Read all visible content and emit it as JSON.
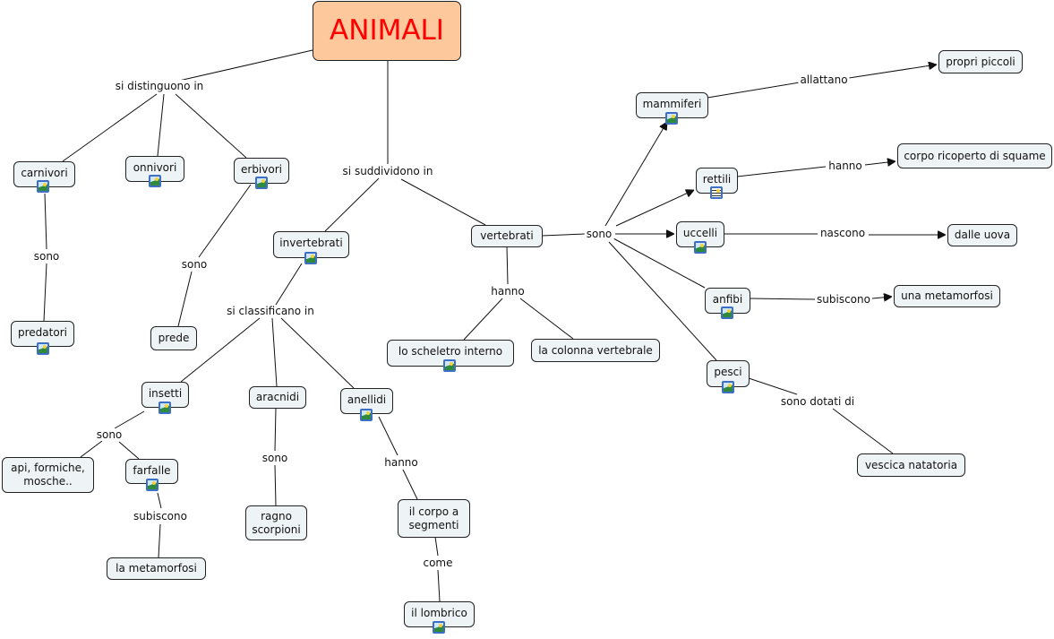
{
  "root": "ANIMALI",
  "concepts": {
    "carnivori": "carnivori",
    "onnivori": "onnivori",
    "erbivori": "erbivori",
    "predatori": "predatori",
    "prede": "prede",
    "invertebrati": "invertebrati",
    "vertebrati": "vertebrati",
    "insetti": "insetti",
    "aracnidi": "aracnidi",
    "anellidi": "anellidi",
    "api": "api, formiche, mosche..",
    "farfalle": "farfalle",
    "la_metamorfosi": "la metamorfosi",
    "ragno": "ragno scorpioni",
    "corpo_segmenti": "il corpo a segmenti",
    "lombrico": "il lombrico",
    "scheletro": "lo scheletro interno",
    "colonna": "la colonna vertebrale",
    "mammiferi": "mammiferi",
    "rettili": "rettili",
    "uccelli": "uccelli",
    "anfibi": "anfibi",
    "pesci": "pesci",
    "propri_piccoli": "propri piccoli",
    "squame": "corpo ricoperto di squame",
    "uova": "dalle uova",
    "una_metamorfosi": "una metamorfosi",
    "vescica": "vescica natatoria"
  },
  "links": {
    "distinguono": "si distinguono in",
    "sono_carn": "sono",
    "sono_erb": "sono",
    "suddividono": "si suddividono in",
    "classificano": "si classificano in",
    "hanno_vert": "hanno",
    "sono_vert": "sono",
    "allattano": "allattano",
    "hanno_rett": "hanno",
    "nascono": "nascono",
    "subiscono_anf": "subiscono",
    "dotati": "sono dotati di",
    "sono_ins": "sono",
    "subiscono_farf": "subiscono",
    "sono_arac": "sono",
    "hanno_anel": "hanno",
    "come": "come"
  },
  "icons": {
    "image": "image-resource-icon",
    "document": "document-resource-icon"
  },
  "colors": {
    "root_fill": "#fdc89b",
    "root_text": "#ff0000",
    "node_fill": "#eef3f5"
  }
}
